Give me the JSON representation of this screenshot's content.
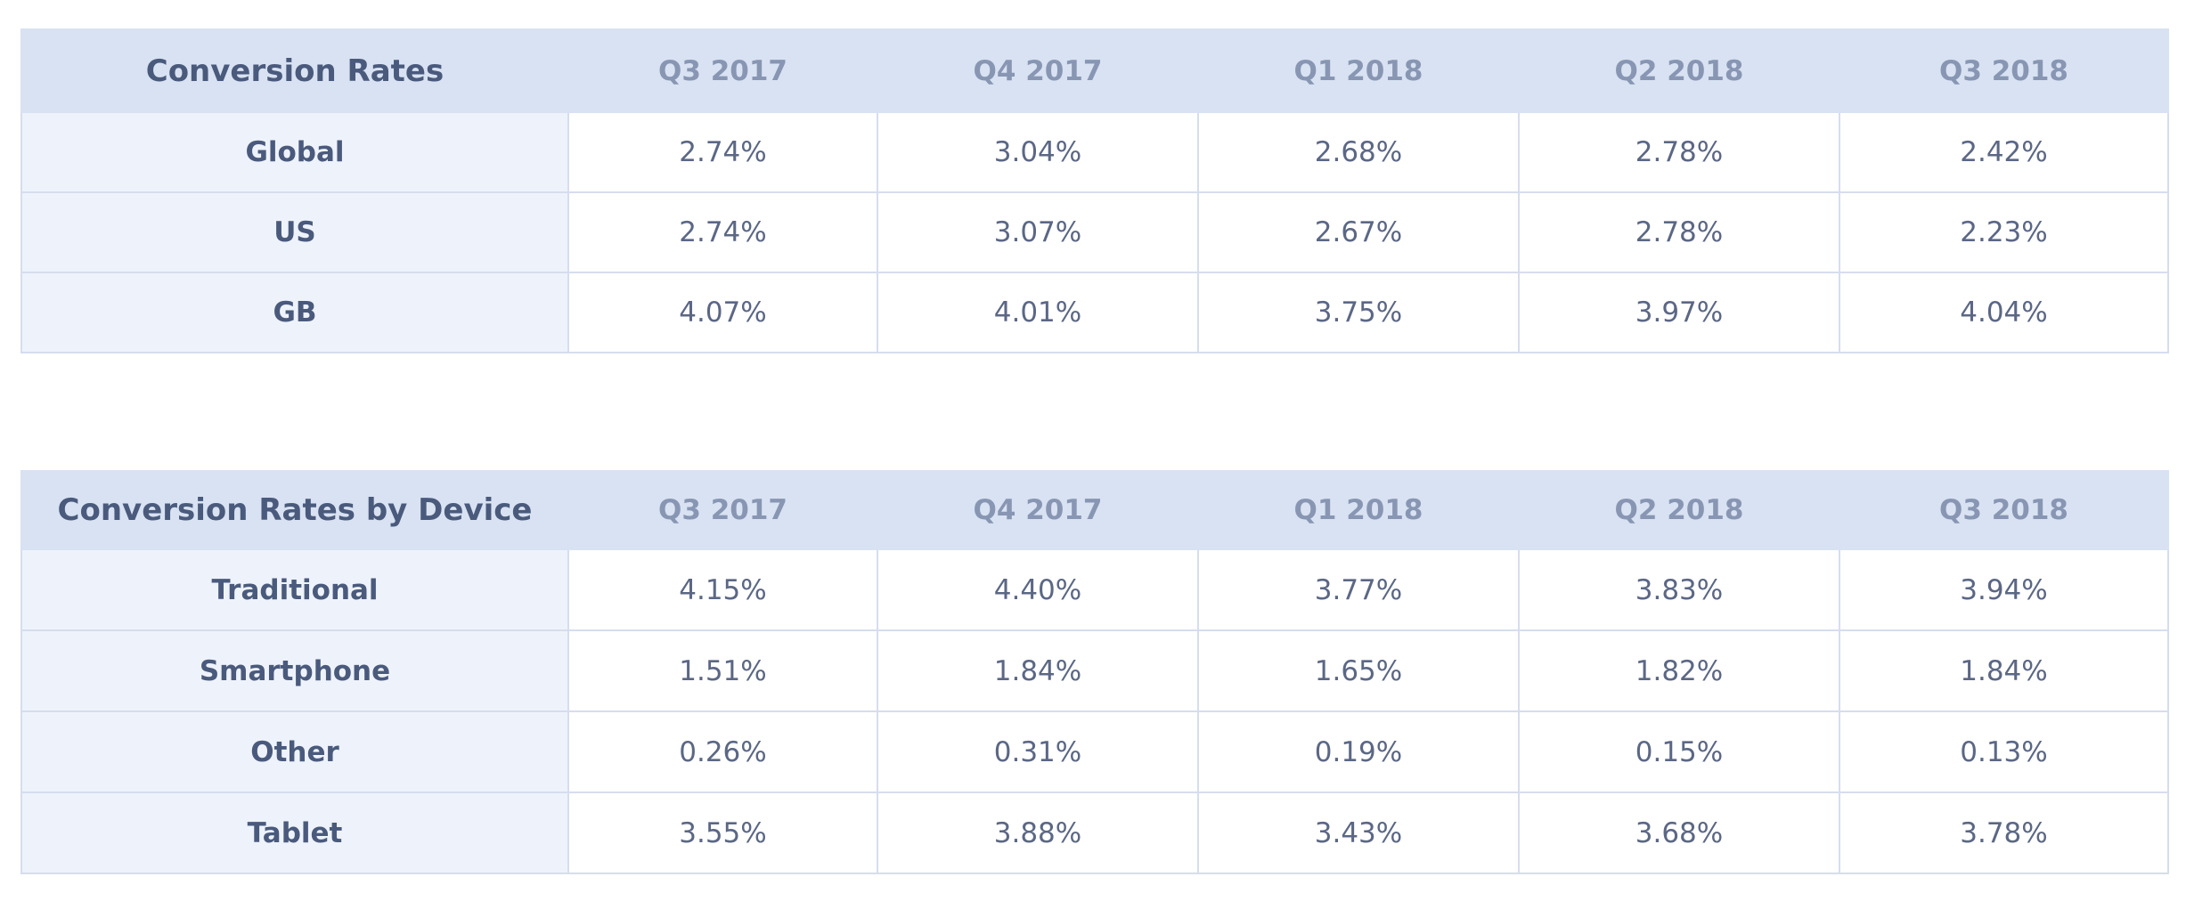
{
  "chart_data": [
    {
      "type": "table",
      "title": "Conversion Rates",
      "columns": [
        "Q3 2017",
        "Q4 2017",
        "Q1 2018",
        "Q2 2018",
        "Q3 2018"
      ],
      "rows": [
        {
          "label": "Global",
          "values": [
            "2.74%",
            "3.04%",
            "2.68%",
            "2.78%",
            "2.42%"
          ]
        },
        {
          "label": "US",
          "values": [
            "2.74%",
            "3.07%",
            "2.67%",
            "2.78%",
            "2.23%"
          ]
        },
        {
          "label": "GB",
          "values": [
            "4.07%",
            "4.01%",
            "3.75%",
            "3.97%",
            "4.04%"
          ]
        }
      ]
    },
    {
      "type": "table",
      "title": "Conversion Rates by Device",
      "columns": [
        "Q3 2017",
        "Q4 2017",
        "Q1 2018",
        "Q2 2018",
        "Q3 2018"
      ],
      "rows": [
        {
          "label": "Traditional",
          "values": [
            "4.15%",
            "4.40%",
            "3.77%",
            "3.83%",
            "3.94%"
          ]
        },
        {
          "label": "Smartphone",
          "values": [
            "1.51%",
            "1.84%",
            "1.65%",
            "1.82%",
            "1.84%"
          ]
        },
        {
          "label": "Other",
          "values": [
            "0.26%",
            "0.31%",
            "0.19%",
            "0.15%",
            "0.13%"
          ]
        },
        {
          "label": "Tablet",
          "values": [
            "3.55%",
            "3.88%",
            "3.43%",
            "3.68%",
            "3.78%"
          ]
        }
      ]
    }
  ],
  "colors": {
    "header_bg": "#d8e2f2",
    "label_bg": "#eef3fb",
    "border": "#d6dded",
    "title_text": "#4a5a7c",
    "header_text": "#8896b3",
    "cell_text": "#5b6784"
  }
}
